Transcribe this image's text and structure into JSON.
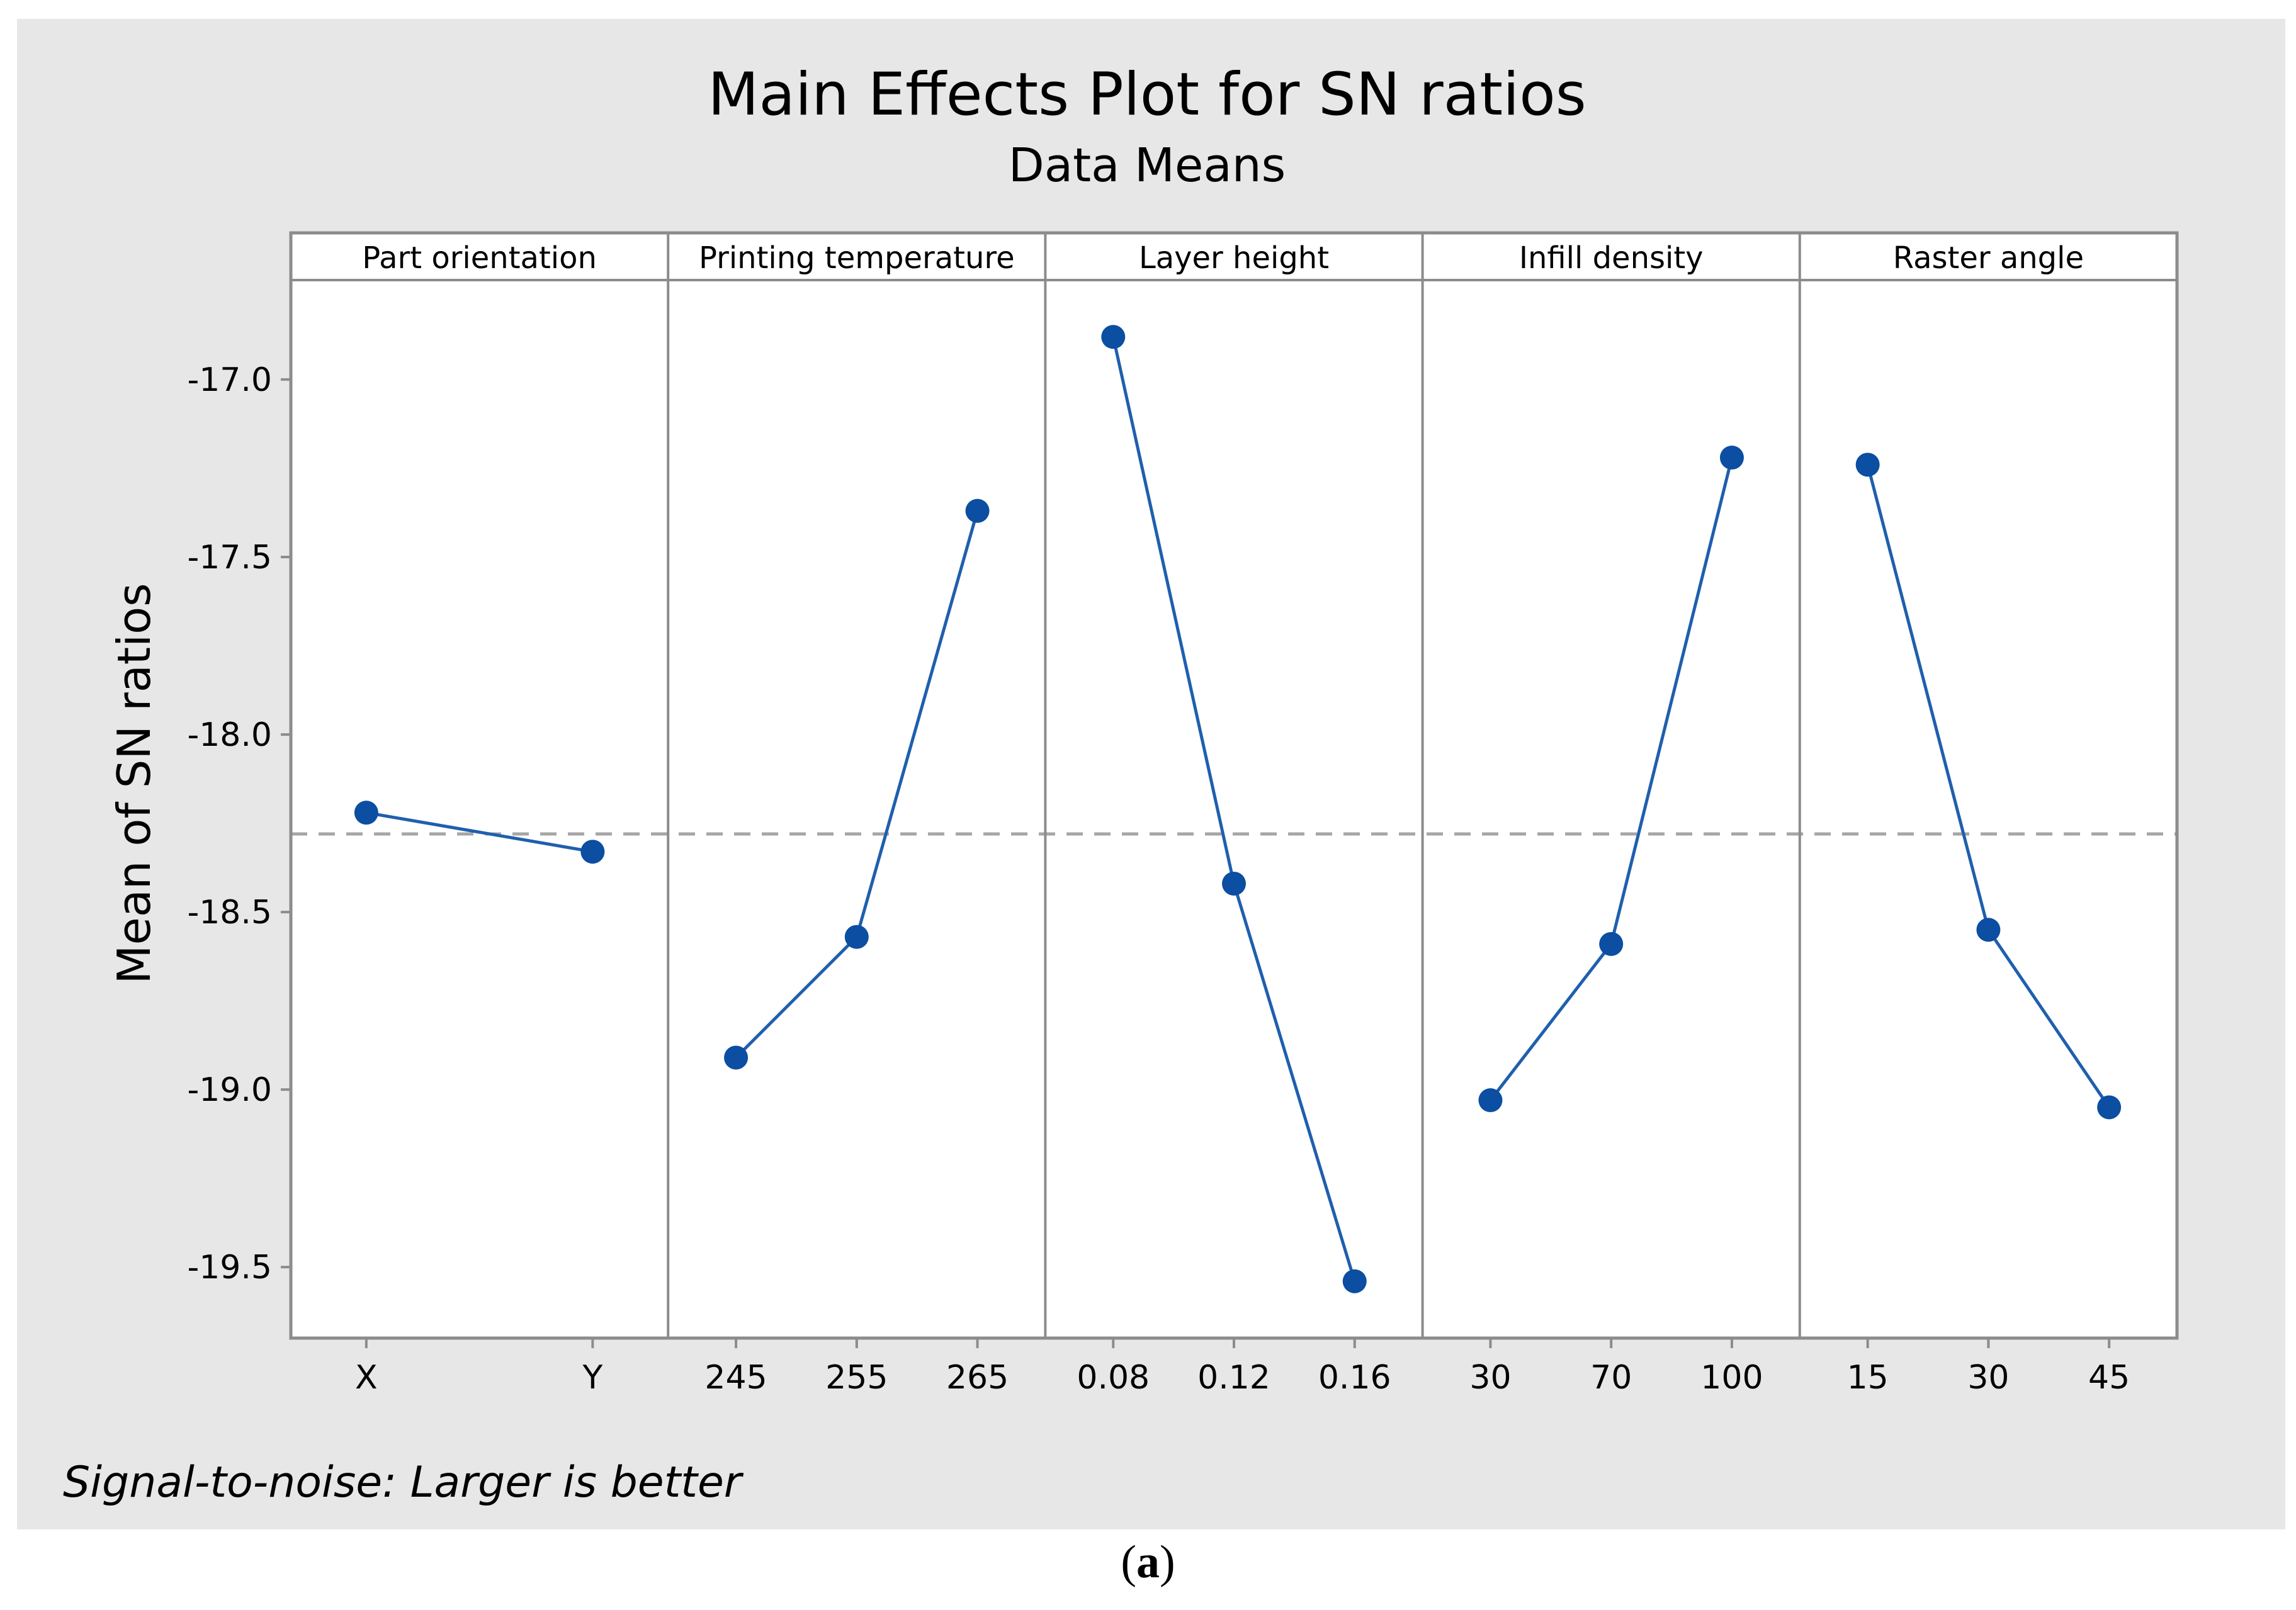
{
  "chart_data": {
    "type": "line",
    "title": "Main Effects Plot for SN ratios",
    "subtitle": "Data Means",
    "ylabel": "Mean of SN ratios",
    "ylim": [
      -19.7,
      -16.72
    ],
    "yticks": [
      "-17.0",
      "-17.5",
      "-18.0",
      "-18.5",
      "-19.0",
      "-19.5"
    ],
    "ytick_values": [
      -17.0,
      -17.5,
      -18.0,
      -18.5,
      -19.0,
      -19.5
    ],
    "reference_line": -18.28,
    "grid": false,
    "footnote": "Signal-to-noise: Larger is better",
    "panels": [
      {
        "name": "Part orientation",
        "categories": [
          "X",
          "Y"
        ],
        "values": [
          -18.22,
          -18.33
        ]
      },
      {
        "name": "Printing temperature",
        "categories": [
          "245",
          "255",
          "265"
        ],
        "values": [
          -18.91,
          -18.57,
          -17.37
        ]
      },
      {
        "name": "Layer height",
        "categories": [
          "0.08",
          "0.12",
          "0.16"
        ],
        "values": [
          -16.88,
          -18.42,
          -19.54
        ]
      },
      {
        "name": "Infill density",
        "categories": [
          "30",
          "70",
          "100"
        ],
        "values": [
          -19.03,
          -18.59,
          -17.22
        ]
      },
      {
        "name": "Raster angle",
        "categories": [
          "15",
          "30",
          "45"
        ],
        "values": [
          -17.24,
          -18.55,
          -19.05
        ]
      }
    ],
    "colors": {
      "series": "#1F5FAD",
      "marker": "#0B4EA2",
      "reference": "#A6A6A6",
      "background": "#E7E7E7",
      "plot": "#FFFFFF",
      "frame": "#8C8C8C"
    }
  },
  "caption": {
    "open": "(",
    "letter": "a",
    "close": ")"
  }
}
